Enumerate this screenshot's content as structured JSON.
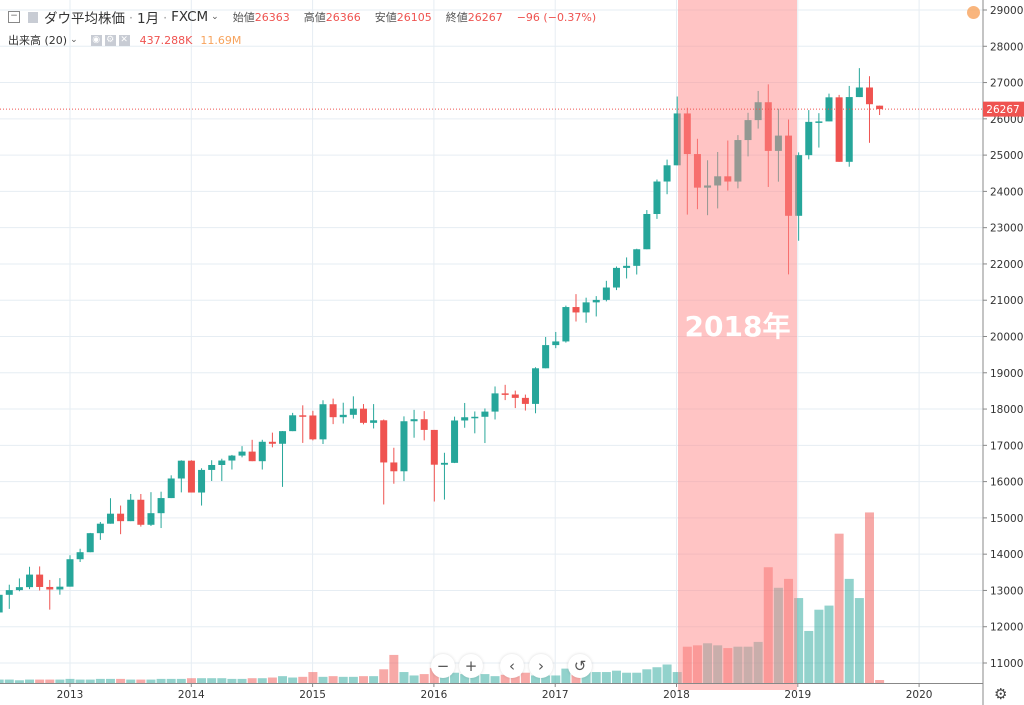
{
  "header": {
    "symbol": "ダウ平均株価",
    "interval": "1月",
    "source": "FXCM",
    "open_label": "始値",
    "open": "26363",
    "high_label": "高値",
    "high": "26366",
    "low_label": "安値",
    "low": "26105",
    "close_label": "終値",
    "close": "26267",
    "change": "−96 (−0.37%)"
  },
  "volume_legend": {
    "label": "出来高 (20)",
    "value": "437.288K",
    "ma": "11.69M"
  },
  "highlight_label": "2018年",
  "price_tag": "26267",
  "nav": {
    "zoom_out": "−",
    "zoom_in": "+",
    "left": "‹",
    "right": "›",
    "reset": "↺"
  },
  "colors": {
    "up": "#26a69a",
    "down": "#ef5350",
    "highlight": "#ff9999",
    "price_line": "#ef5350"
  },
  "chart_data": {
    "type": "candlestick",
    "interval": "monthly",
    "start": "2012-06",
    "y_ticks": [
      "11000",
      "12000",
      "13000",
      "14000",
      "15000",
      "16000",
      "17000",
      "18000",
      "19000",
      "20000",
      "21000",
      "22000",
      "23000",
      "24000",
      "25000",
      "26000",
      "27000",
      "28000",
      "29000"
    ],
    "x_ticks": [
      "2013",
      "2014",
      "2015",
      "2016",
      "2017",
      "2018",
      "2019",
      "2020"
    ],
    "ylim": [
      11000,
      29000
    ],
    "grid": true,
    "highlight_range": [
      "2018-01",
      "2018-12"
    ],
    "ohlc": [
      [
        12393,
        12898,
        12035,
        12880
      ],
      [
        12880,
        13158,
        12492,
        13009
      ],
      [
        13009,
        13331,
        12978,
        13091
      ],
      [
        13091,
        13653,
        13036,
        13437
      ],
      [
        13437,
        13662,
        12998,
        13096
      ],
      [
        13096,
        13290,
        12471,
        13026
      ],
      [
        13026,
        13340,
        12883,
        13104
      ],
      [
        13104,
        13970,
        13104,
        13861
      ],
      [
        13861,
        14149,
        13784,
        14054
      ],
      [
        14054,
        14586,
        14054,
        14579
      ],
      [
        14579,
        14888,
        14394,
        14840
      ],
      [
        14840,
        15542,
        14840,
        15116
      ],
      [
        15116,
        15340,
        14551,
        14910
      ],
      [
        14910,
        15659,
        14910,
        15500
      ],
      [
        15500,
        15659,
        14760,
        14810
      ],
      [
        14810,
        15709,
        14777,
        15130
      ],
      [
        15130,
        15722,
        14720,
        15546
      ],
      [
        15546,
        16174,
        15546,
        16086
      ],
      [
        16086,
        16588,
        15703,
        16577
      ],
      [
        16577,
        16589,
        15699,
        15699
      ],
      [
        15699,
        16368,
        15340,
        16322
      ],
      [
        16322,
        16589,
        16017,
        16458
      ],
      [
        16458,
        16631,
        16015,
        16581
      ],
      [
        16581,
        16736,
        16334,
        16717
      ],
      [
        16717,
        16978,
        16669,
        16827
      ],
      [
        16827,
        17152,
        16563,
        16563
      ],
      [
        16563,
        17153,
        16333,
        17098
      ],
      [
        17098,
        17350,
        16945,
        17043
      ],
      [
        17043,
        17395,
        15855,
        17391
      ],
      [
        17391,
        17895,
        17391,
        17828
      ],
      [
        17828,
        18103,
        17067,
        17823
      ],
      [
        17823,
        17951,
        17136,
        17165
      ],
      [
        17165,
        18244,
        17037,
        18133
      ],
      [
        18133,
        18288,
        17585,
        17776
      ],
      [
        17776,
        18175,
        17601,
        17841
      ],
      [
        17841,
        18351,
        17736,
        18011
      ],
      [
        18011,
        18138,
        17578,
        17620
      ],
      [
        17620,
        18137,
        17465,
        17690
      ],
      [
        17690,
        17712,
        15370,
        16528
      ],
      [
        16528,
        16933,
        15942,
        16285
      ],
      [
        16285,
        17799,
        16014,
        17664
      ],
      [
        17664,
        17978,
        17210,
        17720
      ],
      [
        17720,
        17943,
        17138,
        17425
      ],
      [
        17425,
        17425,
        15451,
        16466
      ],
      [
        16466,
        16795,
        15504,
        16517
      ],
      [
        16517,
        17791,
        16511,
        17685
      ],
      [
        17685,
        18168,
        17484,
        17774
      ],
      [
        17774,
        17934,
        17331,
        17787
      ],
      [
        17787,
        18017,
        17063,
        17930
      ],
      [
        17930,
        18623,
        17713,
        18432
      ],
      [
        18432,
        18668,
        18247,
        18401
      ],
      [
        18401,
        18508,
        18027,
        18308
      ],
      [
        18308,
        18399,
        17959,
        18142
      ],
      [
        18142,
        19152,
        17884,
        19124
      ],
      [
        19124,
        19987,
        19124,
        19763
      ],
      [
        19763,
        20125,
        19678,
        19864
      ],
      [
        19864,
        20851,
        19832,
        20812
      ],
      [
        20812,
        21169,
        20412,
        20663
      ],
      [
        20663,
        21070,
        20379,
        20941
      ],
      [
        20941,
        21113,
        20553,
        21009
      ],
      [
        21009,
        21535,
        20968,
        21350
      ],
      [
        21350,
        21930,
        21279,
        21891
      ],
      [
        21891,
        22180,
        21600,
        21948
      ],
      [
        21948,
        22419,
        21709,
        22405
      ],
      [
        22405,
        23485,
        22405,
        23377
      ],
      [
        23377,
        24328,
        23242,
        24272
      ],
      [
        24272,
        24876,
        23922,
        24719
      ],
      [
        24719,
        26616,
        24719,
        26149
      ],
      [
        26149,
        26306,
        23360,
        25029
      ],
      [
        25029,
        25450,
        23509,
        24103
      ],
      [
        24103,
        24858,
        23344,
        24163
      ],
      [
        24163,
        25086,
        23531,
        24416
      ],
      [
        24416,
        25402,
        24022,
        24271
      ],
      [
        24271,
        25552,
        24084,
        25415
      ],
      [
        25415,
        26167,
        24965,
        25965
      ],
      [
        25965,
        26769,
        25731,
        26458
      ],
      [
        26458,
        26951,
        24122,
        25116
      ],
      [
        25116,
        26277,
        24268,
        25538
      ],
      [
        25538,
        25980,
        21712,
        23327
      ],
      [
        23327,
        25075,
        22639,
        24999
      ],
      [
        24999,
        26241,
        24883,
        25916
      ],
      [
        25916,
        26156,
        25208,
        25929
      ],
      [
        25929,
        26696,
        25929,
        26593
      ],
      [
        26593,
        26660,
        24815,
        24815
      ],
      [
        24815,
        26907,
        24680,
        26600
      ],
      [
        26600,
        27398,
        26600,
        26864
      ],
      [
        26864,
        27175,
        25339,
        26403
      ],
      [
        26363,
        26366,
        26105,
        26267
      ]
    ],
    "volume_millions": [
      0.5,
      0.5,
      0.4,
      0.5,
      0.5,
      0.5,
      0.5,
      0.6,
      0.5,
      0.5,
      0.6,
      0.6,
      0.6,
      0.5,
      0.5,
      0.5,
      0.6,
      0.6,
      0.6,
      0.7,
      0.7,
      0.7,
      0.7,
      0.6,
      0.6,
      0.7,
      0.7,
      0.8,
      1.0,
      0.8,
      0.9,
      1.6,
      0.9,
      1.0,
      0.9,
      0.9,
      1.0,
      1.0,
      2.0,
      4.1,
      1.6,
      1.1,
      1.3,
      2.2,
      1.9,
      1.5,
      1.3,
      1.1,
      1.3,
      1.0,
      1.2,
      1.0,
      1.5,
      1.1,
      1.1,
      1.1,
      2.1,
      1.6,
      1.6,
      1.6,
      1.6,
      1.8,
      1.5,
      1.5,
      2.0,
      2.3,
      2.7,
      1.6,
      5.3,
      5.5,
      5.8,
      5.5,
      5.1,
      5.3,
      5.3,
      6.0,
      16.9,
      13.9,
      15.2,
      12.4,
      7.6,
      10.7,
      11.3,
      21.8,
      15.2,
      12.4,
      24.9,
      0.437
    ]
  }
}
